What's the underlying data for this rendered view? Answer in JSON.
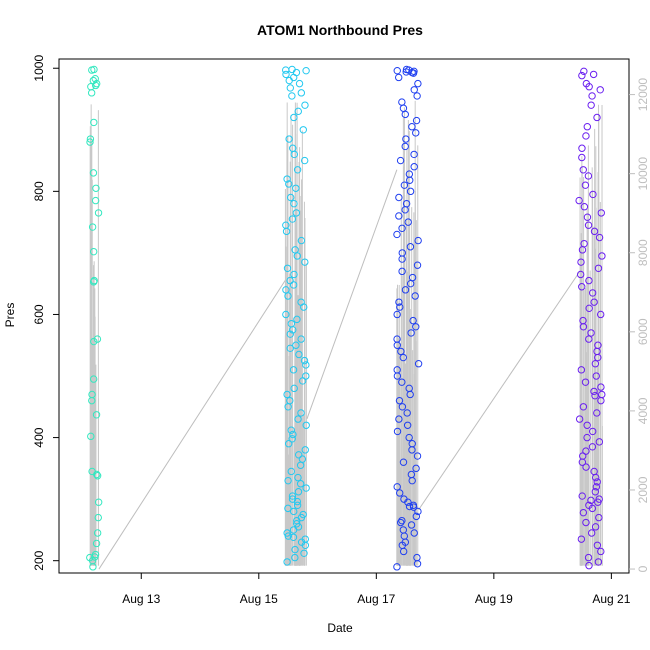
{
  "chart_data": {
    "type": "scatter",
    "title": "ATOM1 Northbound Pres",
    "xlabel": "Date",
    "ylabel": "Pres",
    "x_ticks": [
      "Aug 13",
      "Aug 15",
      "Aug 17",
      "Aug 19",
      "Aug 21"
    ],
    "x_tick_days": [
      13,
      15,
      17,
      19,
      21
    ],
    "xlim_days": [
      11.6,
      21.3
    ],
    "y_ticks": [
      200,
      400,
      600,
      800,
      1000
    ],
    "ylim": [
      180,
      1015
    ],
    "y2_ticks": [
      "0",
      "2000",
      "4000",
      "6000",
      "8000",
      "10000",
      "12000"
    ],
    "y2_tick_values": [
      0,
      2000,
      4000,
      6000,
      8000,
      10000,
      12000
    ],
    "y2lim": [
      -100,
      12900
    ],
    "grid": false,
    "legend": "none",
    "colors": {
      "transit_line": "#bebebe",
      "bursts": [
        "#33e8c0",
        "#22c8f0",
        "#1f3ff0",
        "#6a1ff0"
      ]
    },
    "bursts": [
      {
        "name": "",
        "day_range": [
          12.12,
          12.28
        ],
        "pres": [
          998,
          997,
          983,
          980,
          975,
          972,
          970,
          960,
          912,
          885,
          880,
          830,
          805,
          785,
          765,
          742,
          702,
          655,
          653,
          560,
          556,
          495,
          470,
          460,
          437,
          402,
          345,
          340,
          338,
          295,
          270,
          245,
          228,
          210,
          206,
          205,
          200,
          190
        ]
      },
      {
        "name": "",
        "day_range": [
          15.45,
          15.82
        ],
        "pres": [
          998,
          997,
          996,
          993,
          990,
          985,
          980,
          975,
          968,
          960,
          955,
          940,
          930,
          920,
          900,
          885,
          870,
          860,
          850,
          835,
          820,
          812,
          805,
          790,
          780,
          765,
          755,
          745,
          735,
          720,
          705,
          695,
          685,
          675,
          665,
          655,
          648,
          640,
          630,
          620,
          612,
          600,
          592,
          585,
          575,
          568,
          560,
          550,
          545,
          535,
          525,
          518,
          510,
          500,
          492,
          480,
          470,
          460,
          450,
          440,
          430,
          420,
          412,
          405,
          398,
          390,
          380,
          372,
          365,
          355,
          345,
          335,
          330,
          325,
          318,
          312,
          305,
          300,
          296,
          290,
          285,
          280,
          275,
          270,
          265,
          260,
          255,
          250,
          245,
          240,
          238,
          235,
          230,
          225,
          218,
          212,
          205,
          198
        ]
      },
      {
        "name": "",
        "day_range": [
          17.35,
          17.72
        ],
        "pres": [
          998,
          997,
          996,
          995,
          994,
          993,
          992,
          985,
          975,
          965,
          955,
          945,
          935,
          925,
          915,
          905,
          895,
          885,
          873,
          860,
          850,
          840,
          828,
          818,
          810,
          800,
          790,
          780,
          770,
          760,
          750,
          740,
          730,
          720,
          710,
          700,
          690,
          680,
          670,
          660,
          650,
          640,
          630,
          620,
          612,
          600,
          590,
          580,
          570,
          560,
          550,
          540,
          530,
          520,
          510,
          500,
          490,
          480,
          470,
          460,
          450,
          440,
          430,
          420,
          410,
          400,
          390,
          380,
          370,
          360,
          350,
          340,
          330,
          320,
          310,
          300,
          295,
          290,
          288,
          287,
          280,
          272,
          265,
          262,
          258,
          250,
          245,
          240,
          230,
          225,
          215,
          205,
          195,
          190
        ]
      },
      {
        "name": "",
        "day_range": [
          20.45,
          20.85
        ],
        "pres": [
          995,
          990,
          988,
          975,
          970,
          965,
          955,
          940,
          920,
          905,
          890,
          870,
          855,
          835,
          825,
          810,
          795,
          785,
          775,
          765,
          758,
          745,
          735,
          725,
          715,
          705,
          695,
          685,
          675,
          665,
          655,
          645,
          635,
          620,
          610,
          600,
          590,
          580,
          570,
          560,
          550,
          540,
          530,
          520,
          510,
          500,
          490,
          482,
          475,
          470,
          468,
          460,
          450,
          440,
          430,
          420,
          410,
          400,
          393,
          385,
          378,
          370,
          360,
          352,
          345,
          335,
          328,
          320,
          312,
          305,
          300,
          298,
          295,
          290,
          285,
          278,
          270,
          262,
          255,
          245,
          235,
          225,
          215,
          205,
          198,
          192
        ]
      }
    ],
    "transit_segments_days": [
      [
        12.28,
        15.45
      ],
      [
        15.82,
        17.35
      ],
      [
        17.72,
        20.45
      ]
    ],
    "transit_y2_values": [
      [
        0,
        7300
      ],
      [
        3800,
        10100
      ],
      [
        1500,
        7500
      ]
    ]
  }
}
